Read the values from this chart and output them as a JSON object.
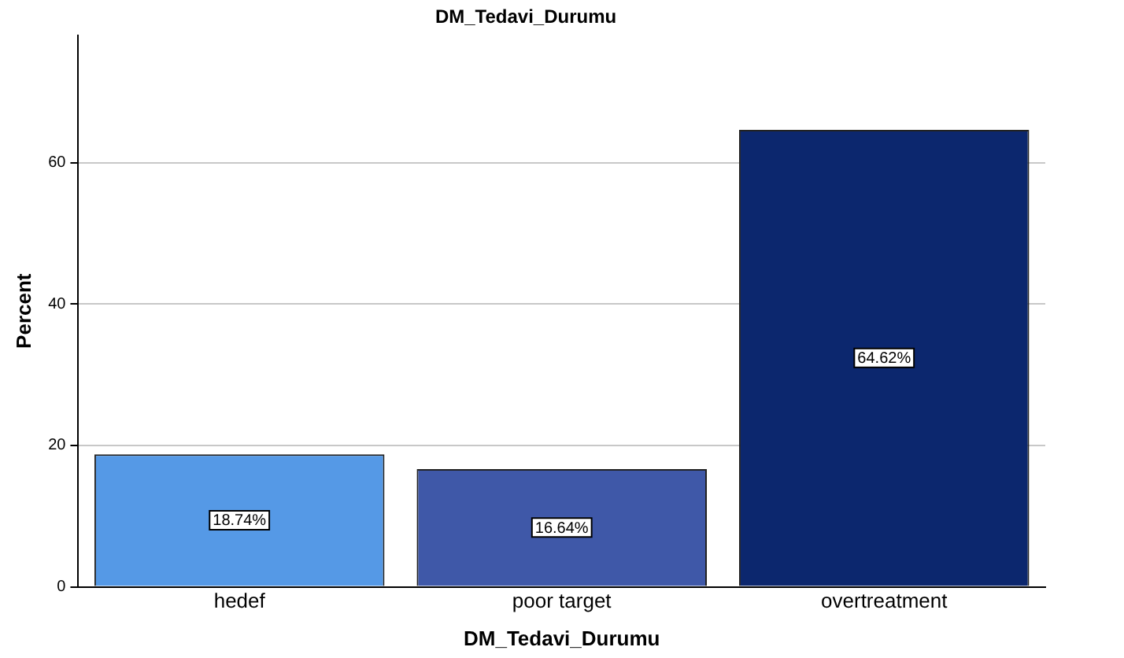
{
  "chart_data": {
    "type": "bar",
    "title": "DM_Tedavi_Durumu",
    "xlabel": "DM_Tedavi_Durumu",
    "ylabel": "Percent",
    "categories": [
      "hedef",
      "poor target",
      "overtreatment"
    ],
    "values": [
      18.74,
      16.64,
      64.62
    ],
    "colors": [
      "#5599e6",
      "#3f58a8",
      "#0c276e"
    ],
    "value_labels": [
      "18.74%",
      "16.64%",
      "64.62%"
    ],
    "ylim": [
      0,
      78
    ],
    "yticks": [
      0,
      20,
      40,
      60
    ],
    "grid": "y",
    "legend": false
  }
}
